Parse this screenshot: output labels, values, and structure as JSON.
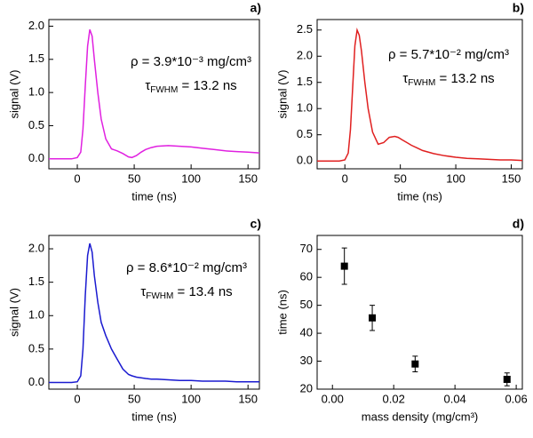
{
  "chart_data": [
    {
      "type": "line",
      "panel_label": "a)",
      "color": "#e020e0",
      "xlabel": "time (ns)",
      "ylabel": "signal (V)",
      "density_label": "ρ = 3.9*10⁻³ mg/cm³",
      "width_label": [
        "τ",
        "FWHM",
        " = 13.2 ns"
      ],
      "xlim": [
        -25,
        160
      ],
      "ylim": [
        -0.15,
        2.1
      ],
      "xticks": [
        0,
        50,
        100,
        150
      ],
      "yticks": [
        {
          "value": 0,
          "label": "0.0"
        },
        {
          "value": 0.5,
          "label": "0.5"
        },
        {
          "value": 1,
          "label": "1.0"
        },
        {
          "value": 1.5,
          "label": "1.5"
        },
        {
          "value": 2,
          "label": "2.0"
        }
      ],
      "x": [
        -25,
        -20,
        -15,
        -10,
        -5,
        0,
        3,
        5,
        7,
        9,
        11,
        13,
        15,
        18,
        21,
        25,
        30,
        35,
        40,
        45,
        48,
        52,
        56,
        60,
        65,
        70,
        80,
        90,
        100,
        110,
        120,
        130,
        140,
        150,
        160
      ],
      "values": [
        0,
        0,
        0,
        0,
        0,
        0.02,
        0.1,
        0.45,
        1.1,
        1.7,
        1.95,
        1.85,
        1.5,
        1.0,
        0.6,
        0.3,
        0.15,
        0.12,
        0.08,
        0.03,
        0.02,
        0.05,
        0.1,
        0.14,
        0.17,
        0.19,
        0.2,
        0.19,
        0.18,
        0.16,
        0.14,
        0.12,
        0.11,
        0.1,
        0.09
      ]
    },
    {
      "type": "line",
      "panel_label": "b)",
      "color": "#e02020",
      "xlabel": "time (ns)",
      "ylabel": "signal (V)",
      "density_label": "ρ = 5.7*10⁻² mg/cm³",
      "width_label": [
        "τ",
        "FWHM",
        " = 13.2 ns"
      ],
      "xlim": [
        -25,
        160
      ],
      "ylim": [
        -0.15,
        2.7
      ],
      "xticks": [
        0,
        50,
        100,
        150
      ],
      "yticks": [
        {
          "value": 0,
          "label": "0.0"
        },
        {
          "value": 0.5,
          "label": "0.5"
        },
        {
          "value": 1,
          "label": "1.0"
        },
        {
          "value": 1.5,
          "label": "1.5"
        },
        {
          "value": 2,
          "label": "2.0"
        },
        {
          "value": 2.5,
          "label": "2.5"
        }
      ],
      "x": [
        -25,
        -20,
        -15,
        -10,
        -5,
        0,
        3,
        5,
        7,
        9,
        11,
        13,
        15,
        18,
        21,
        25,
        30,
        35,
        40,
        45,
        48,
        52,
        56,
        60,
        65,
        70,
        80,
        90,
        100,
        110,
        120,
        130,
        140,
        150,
        160
      ],
      "values": [
        0,
        0,
        0,
        0,
        0,
        0.02,
        0.15,
        0.6,
        1.4,
        2.2,
        2.5,
        2.4,
        2.1,
        1.5,
        1.0,
        0.55,
        0.32,
        0.35,
        0.45,
        0.47,
        0.45,
        0.4,
        0.35,
        0.3,
        0.25,
        0.2,
        0.14,
        0.1,
        0.07,
        0.05,
        0.04,
        0.03,
        0.02,
        0.02,
        0.01
      ]
    },
    {
      "type": "line",
      "panel_label": "c)",
      "color": "#1a1ad0",
      "xlabel": "time (ns)",
      "ylabel": "signal (V)",
      "density_label": "ρ = 8.6*10⁻² mg/cm³",
      "width_label": [
        "τ",
        "FWHM",
        " = 13.4 ns"
      ],
      "xlim": [
        -25,
        160
      ],
      "ylim": [
        -0.1,
        2.2
      ],
      "xticks": [
        0,
        50,
        100,
        150
      ],
      "yticks": [
        {
          "value": 0,
          "label": "0.0"
        },
        {
          "value": 0.5,
          "label": "0.5"
        },
        {
          "value": 1,
          "label": "1.0"
        },
        {
          "value": 1.5,
          "label": "1.5"
        },
        {
          "value": 2,
          "label": "2.0"
        }
      ],
      "x": [
        -25,
        -20,
        -15,
        -10,
        -5,
        0,
        3,
        5,
        7,
        9,
        11,
        13,
        15,
        18,
        21,
        25,
        30,
        35,
        40,
        45,
        48,
        52,
        56,
        60,
        65,
        70,
        80,
        90,
        100,
        110,
        120,
        130,
        140,
        150,
        160
      ],
      "values": [
        0,
        0,
        0,
        0,
        0,
        0.01,
        0.1,
        0.5,
        1.3,
        1.9,
        2.08,
        1.95,
        1.6,
        1.2,
        0.9,
        0.7,
        0.5,
        0.35,
        0.2,
        0.12,
        0.1,
        0.08,
        0.07,
        0.06,
        0.05,
        0.05,
        0.04,
        0.03,
        0.03,
        0.02,
        0.02,
        0.02,
        0.01,
        0.01,
        0.01
      ]
    },
    {
      "type": "scatter",
      "panel_label": "d)",
      "color": "#000000",
      "xlabel": "mass density (mg/cm³)",
      "ylabel": "time (ns)",
      "xlim": [
        -0.005,
        0.062
      ],
      "ylim": [
        20,
        75
      ],
      "xticks": [
        {
          "value": 0,
          "label": "0.00"
        },
        {
          "value": 0.02,
          "label": "0.02"
        },
        {
          "value": 0.04,
          "label": "0.04"
        },
        {
          "value": 0.06,
          "label": "0.06"
        }
      ],
      "yticks": [
        20,
        30,
        40,
        50,
        60,
        70
      ],
      "x": [
        0.0039,
        0.013,
        0.027,
        0.057
      ],
      "values": [
        64,
        45.5,
        29,
        23.5
      ],
      "errors": [
        6.5,
        4.5,
        2.8,
        2.3
      ]
    }
  ]
}
